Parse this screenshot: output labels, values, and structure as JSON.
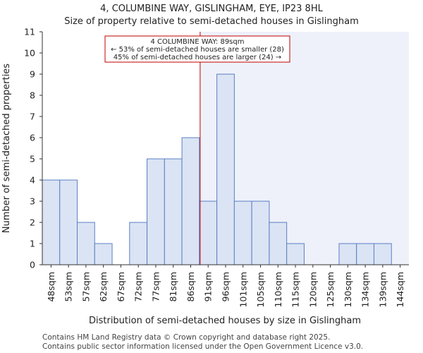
{
  "chart_data": {
    "type": "bar",
    "title_line1": "4, COLUMBINE WAY, GISLINGHAM, EYE, IP23 8HL",
    "title_line2": "Size of property relative to semi-detached houses in Gislingham",
    "xlabel": "Distribution of semi-detached houses by size in Gislingham",
    "ylabel": "Number of semi-detached properties",
    "categories": [
      "48sqm",
      "53sqm",
      "57sqm",
      "62sqm",
      "67sqm",
      "72sqm",
      "77sqm",
      "81sqm",
      "86sqm",
      "91sqm",
      "96sqm",
      "101sqm",
      "105sqm",
      "110sqm",
      "115sqm",
      "120sqm",
      "125sqm",
      "130sqm",
      "134sqm",
      "139sqm",
      "144sqm"
    ],
    "values": [
      4,
      4,
      2,
      1,
      0,
      2,
      5,
      5,
      6,
      3,
      9,
      3,
      3,
      2,
      1,
      0,
      0,
      1,
      1,
      1,
      0
    ],
    "ylim": [
      0,
      11
    ],
    "yticks": [
      0,
      1,
      2,
      3,
      4,
      5,
      6,
      7,
      8,
      9,
      10,
      11
    ],
    "marker": {
      "value_sqm": 89,
      "label_line1": "4 COLUMBINE WAY: 89sqm",
      "label_line2": "← 53% of semi-detached houses are smaller (28)",
      "label_line3": "45% of semi-detached houses are larger (24) →"
    },
    "colors": {
      "bar_fill": "#dbe4f4",
      "bar_edge": "#5b7ec4",
      "marker_line": "#c00000",
      "highlight_region": "#eef1fa"
    },
    "footer_line1": "Contains HM Land Registry data © Crown copyright and database right 2025.",
    "footer_line2": "Contains public sector information licensed under the Open Government Licence v3.0."
  }
}
